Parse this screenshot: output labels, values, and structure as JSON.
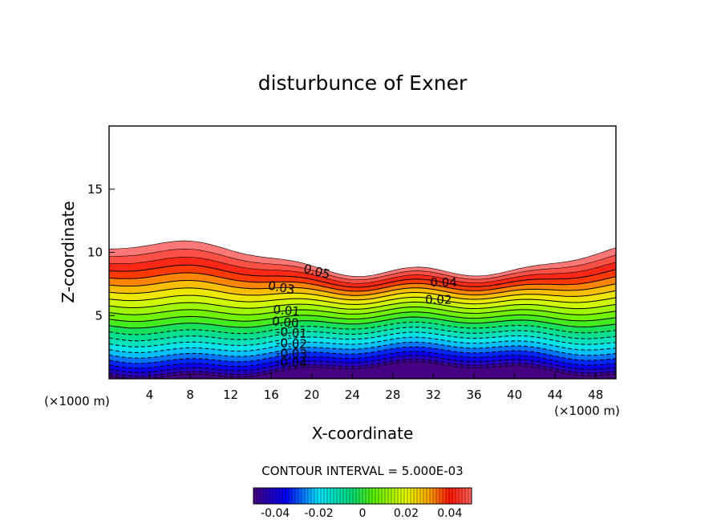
{
  "chart_data": {
    "type": "contour",
    "title": "disturbunce of Exner",
    "xlabel": "X-coordinate",
    "ylabel": "Z-coordinate",
    "x_unit": "(×1000 m)",
    "xlim": [
      0,
      50
    ],
    "ylim": [
      0,
      20
    ],
    "x_ticks": [
      4,
      8,
      12,
      16,
      20,
      24,
      28,
      32,
      36,
      40,
      44,
      48
    ],
    "y_ticks": [
      5,
      10,
      15
    ],
    "grid": false,
    "contour_interval_label": "CONTOUR INTERVAL = 5.000E-03",
    "contour_interval": 0.005,
    "levels_range": [
      -0.05,
      0.055
    ],
    "negative_contours": "dashed",
    "contour_labels": [
      "0.05",
      "0.03",
      "0.01",
      "0.00",
      "-0.01",
      "-0.02",
      "-0.03",
      "-0.04",
      "0.04",
      "0.02"
    ],
    "colorbar": {
      "ticks": [
        "-0.04",
        "-0.02",
        "0",
        "0.02",
        "0.04"
      ],
      "range": [
        -0.05,
        0.05
      ],
      "placement": "bottom"
    },
    "colors": {
      "scale_low": "#4b0082",
      "scale_mid": "#7cfc00",
      "scale_high": "#ff0000",
      "saturated": "#ff8080",
      "beyond_range": "#ffffff"
    }
  }
}
